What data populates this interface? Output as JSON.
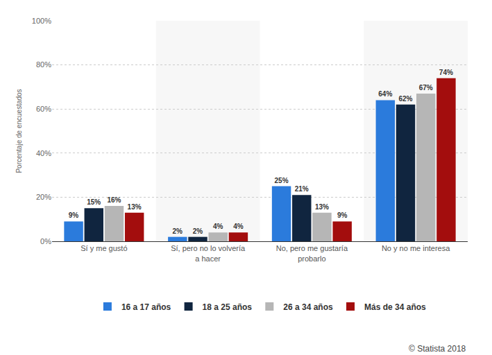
{
  "chart_data": {
    "type": "bar",
    "y_label": "Porcentaje de encuestados",
    "source": "© Statista 2018",
    "categories": [
      "Sí y me gustó",
      "Sí, pero no lo volvería a hacer",
      "No, pero me gustaría probarlo",
      "No y no me interesa"
    ],
    "series": [
      {
        "name": "16 a 17 años",
        "color": "#2b7bdc",
        "values": [
          9,
          2,
          25,
          64
        ],
        "value_labels": [
          "9%",
          "2%",
          "25%",
          "64%"
        ]
      },
      {
        "name": "18 a 25 años",
        "color": "#10253f",
        "values": [
          15,
          2,
          21,
          62
        ],
        "value_labels": [
          "15%",
          "2%",
          "21%",
          "62%"
        ]
      },
      {
        "name": "26 a 34 años",
        "color": "#b6b6b6",
        "values": [
          16,
          4,
          13,
          67
        ],
        "value_labels": [
          "16%",
          "4%",
          "13%",
          "67%"
        ]
      },
      {
        "name": "Más de 34 años",
        "color": "#a30d0d",
        "values": [
          13,
          4,
          9,
          74
        ],
        "value_labels": [
          "13%",
          "4%",
          "9%",
          "74%"
        ]
      }
    ],
    "ylim": [
      0,
      100
    ],
    "yticks": [
      {
        "value": 0,
        "label": "0%"
      },
      {
        "value": 20,
        "label": "20%"
      },
      {
        "value": 40,
        "label": "40%"
      },
      {
        "value": 60,
        "label": "60%"
      },
      {
        "value": 80,
        "label": "80%"
      },
      {
        "value": 100,
        "label": "100%"
      }
    ],
    "grid": true,
    "legend": "bottom",
    "data_labels": true
  }
}
